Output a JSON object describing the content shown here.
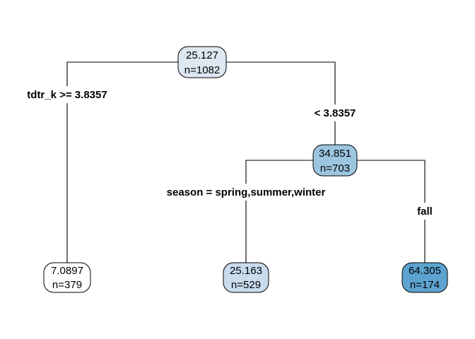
{
  "tree": {
    "nodes": {
      "root": {
        "value": "25.127",
        "n": "n=1082",
        "fill": "#dde8f2"
      },
      "left_leaf": {
        "value": "7.0897",
        "n": "n=379",
        "fill": "#ffffff"
      },
      "right_split": {
        "value": "34.851",
        "n": "n=703",
        "fill": "#9cc6e0"
      },
      "right_left_leaf": {
        "value": "25.163",
        "n": "n=529",
        "fill": "#c8dcee"
      },
      "right_right_leaf": {
        "value": "64.305",
        "n": "n=174",
        "fill": "#5da3d0"
      }
    },
    "splits": {
      "root_left": "tdtr_k >= 3.8357",
      "root_right": "< 3.8357",
      "right_left": "season = spring,summer,winter",
      "right_right": "fall"
    }
  }
}
